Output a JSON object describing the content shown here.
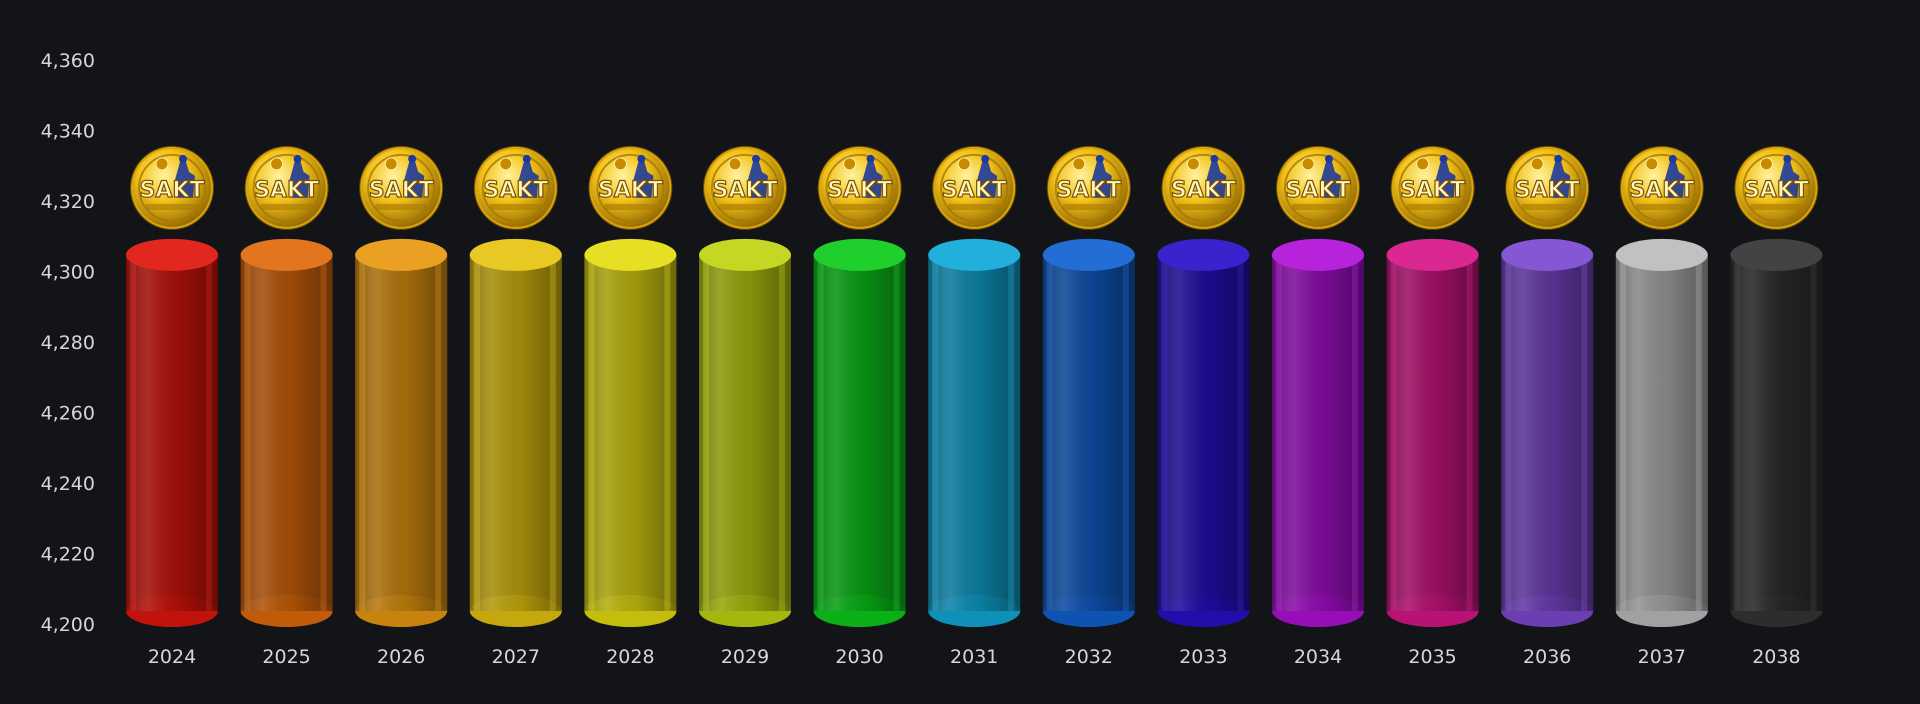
{
  "chart_data": {
    "type": "bar",
    "style": "3d-cylinder",
    "categories": [
      "2024",
      "2025",
      "2026",
      "2027",
      "2028",
      "2029",
      "2030",
      "2031",
      "2032",
      "2033",
      "2034",
      "2035",
      "2036",
      "2037",
      "2038"
    ],
    "values": [
      4305,
      4305,
      4305,
      4305,
      4305,
      4305,
      4305,
      4305,
      4305,
      4305,
      4305,
      4305,
      4305,
      4305,
      4305
    ],
    "colors": [
      "#e0140c",
      "#e06a0a",
      "#e89810",
      "#e6c410",
      "#e4dc10",
      "#c0d410",
      "#0ccc1a",
      "#10a8d8",
      "#1060d0",
      "#2810c8",
      "#b010d8",
      "#d81488",
      "#7c48d0",
      "#bcbcbc",
      "#333333"
    ],
    "marker_icon": "sakt-gold-coin-icon",
    "marker_value": 4324,
    "ylim": [
      4200,
      4360
    ],
    "yticks": [
      "4,200",
      "4,220",
      "4,240",
      "4,260",
      "4,280",
      "4,300",
      "4,320",
      "4,340",
      "4,360"
    ],
    "grid": false,
    "title": "",
    "xlabel": "",
    "ylabel": ""
  },
  "colors": {
    "background": "#131418",
    "tick_text": "#d6d6d6",
    "coin_gold": "#f2c21a",
    "coin_blue": "#1e3a9c"
  }
}
